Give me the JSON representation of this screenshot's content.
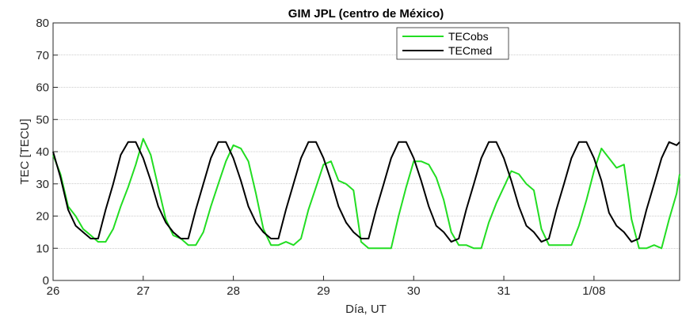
{
  "chart_data": {
    "type": "line",
    "title": "GIM JPL (centro de México)",
    "xlabel": "Día, UT",
    "ylabel": "TEC [TECU]",
    "xlim": [
      26,
      32.95
    ],
    "ylim": [
      0,
      80
    ],
    "yticks": [
      0,
      10,
      20,
      30,
      40,
      50,
      60,
      70,
      80
    ],
    "xticks": [
      {
        "value": 26,
        "label": "26"
      },
      {
        "value": 27,
        "label": "27"
      },
      {
        "value": 28,
        "label": "28"
      },
      {
        "value": 29,
        "label": "29"
      },
      {
        "value": 30,
        "label": "30"
      },
      {
        "value": 31,
        "label": "31"
      },
      {
        "value": 32,
        "label": "1/08"
      }
    ],
    "grid": "horizontal",
    "legend_position": "top-right",
    "series": [
      {
        "name": "TECobs",
        "color": "#22dd22",
        "x": [
          26.0,
          26.083,
          26.167,
          26.25,
          26.333,
          26.417,
          26.5,
          26.583,
          26.667,
          26.75,
          26.833,
          26.917,
          27.0,
          27.083,
          27.167,
          27.25,
          27.333,
          27.417,
          27.5,
          27.583,
          27.667,
          27.75,
          27.833,
          27.917,
          28.0,
          28.083,
          28.167,
          28.25,
          28.333,
          28.417,
          28.5,
          28.583,
          28.667,
          28.75,
          28.833,
          28.917,
          29.0,
          29.083,
          29.167,
          29.25,
          29.333,
          29.417,
          29.5,
          29.583,
          29.667,
          29.75,
          29.833,
          29.917,
          30.0,
          30.083,
          30.167,
          30.25,
          30.333,
          30.417,
          30.5,
          30.583,
          30.667,
          30.75,
          30.833,
          30.917,
          31.0,
          31.083,
          31.167,
          31.25,
          31.333,
          31.417,
          31.5,
          31.583,
          31.667,
          31.75,
          31.833,
          31.917,
          32.0,
          32.083,
          32.167,
          32.25,
          32.333,
          32.417,
          32.5,
          32.583,
          32.667,
          32.75,
          32.833,
          32.917,
          32.95
        ],
        "values": [
          39,
          33,
          23,
          20,
          16,
          14,
          12,
          12,
          16,
          23,
          29,
          36,
          44,
          39,
          29,
          19,
          14,
          13,
          11,
          11,
          15,
          23,
          30,
          37,
          42,
          41,
          37,
          27,
          16,
          11,
          11,
          12,
          11,
          13,
          22,
          29,
          36,
          37,
          31,
          30,
          28,
          12,
          10,
          10,
          10,
          10,
          20,
          29,
          37,
          37,
          36,
          32,
          25,
          15,
          11,
          11,
          10,
          10,
          18,
          24,
          29,
          34,
          33,
          30,
          28,
          16,
          11,
          11,
          11,
          11,
          17,
          25,
          34,
          41,
          38,
          35,
          36,
          19,
          10,
          10,
          11,
          10,
          19,
          27,
          33
        ]
      },
      {
        "name": "TECmed",
        "color": "#000000",
        "x": [
          26.0,
          26.083,
          26.167,
          26.25,
          26.333,
          26.417,
          26.5,
          26.583,
          26.667,
          26.75,
          26.833,
          26.917,
          27.0,
          27.083,
          27.167,
          27.25,
          27.333,
          27.417,
          27.5,
          27.583,
          27.667,
          27.75,
          27.833,
          27.917,
          28.0,
          28.083,
          28.167,
          28.25,
          28.333,
          28.417,
          28.5,
          28.583,
          28.667,
          28.75,
          28.833,
          28.917,
          29.0,
          29.083,
          29.167,
          29.25,
          29.333,
          29.417,
          29.5,
          29.583,
          29.667,
          29.75,
          29.833,
          29.917,
          30.0,
          30.083,
          30.167,
          30.25,
          30.333,
          30.417,
          30.5,
          30.583,
          30.667,
          30.75,
          30.833,
          30.917,
          31.0,
          31.083,
          31.167,
          31.25,
          31.333,
          31.417,
          31.5,
          31.583,
          31.667,
          31.75,
          31.833,
          31.917,
          32.0,
          32.083,
          32.167,
          32.25,
          32.333,
          32.417,
          32.5,
          32.583,
          32.667,
          32.75,
          32.833,
          32.917,
          32.95
        ],
        "values": [
          40,
          32,
          22,
          17,
          15,
          13,
          13,
          22,
          30,
          39,
          43,
          43,
          38,
          31,
          23,
          18,
          15,
          13,
          13,
          22,
          30,
          38,
          43,
          43,
          38,
          31,
          23,
          18,
          15,
          13,
          13,
          22,
          30,
          38,
          43,
          43,
          38,
          31,
          23,
          18,
          15,
          13,
          13,
          22,
          30,
          38,
          43,
          43,
          38,
          31,
          23,
          17,
          15,
          12,
          13,
          22,
          30,
          38,
          43,
          43,
          38,
          31,
          23,
          17,
          15,
          12,
          13,
          22,
          30,
          38,
          43,
          43,
          38,
          31,
          21,
          17,
          15,
          12,
          13,
          22,
          30,
          38,
          43,
          42,
          43
        ]
      }
    ]
  }
}
